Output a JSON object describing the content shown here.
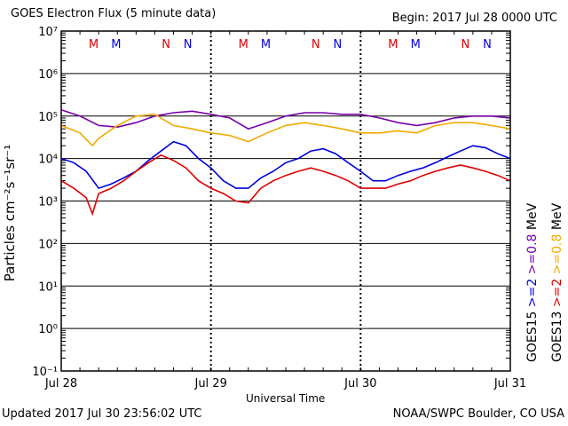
{
  "header": {
    "title": "GOES Electron Flux (5 minute data)",
    "begin": "Begin: 2017 Jul 28 0000 UTC"
  },
  "footer": {
    "updated": "Updated 2017 Jul 30 23:56:02 UTC",
    "source": "NOAA/SWPC Boulder, CO USA"
  },
  "chart_data": {
    "type": "line",
    "xlabel": "Universal Time",
    "ylabel": "Particles cm⁻²s⁻¹sr⁻¹",
    "y_scale": "log",
    "ylim_exponent": [
      -1,
      7
    ],
    "y_tick_labels": [
      "10⁻¹",
      "10⁰",
      "10¹",
      "10²",
      "10³",
      "10⁴",
      "10⁵",
      "10⁶",
      "10⁷"
    ],
    "x_tick_labels": [
      "Jul 28",
      "Jul 29",
      "Jul 30",
      "Jul 31"
    ],
    "x_range_hours": [
      0,
      72
    ],
    "threshold_line": {
      "y": 1000,
      "style": "dashed"
    },
    "mn_markers": [
      {
        "label": "M",
        "hour": 5.2,
        "color": "#dd0000"
      },
      {
        "label": "M",
        "hour": 8.8,
        "color": "#0000dd"
      },
      {
        "label": "N",
        "hour": 16.8,
        "color": "#dd0000"
      },
      {
        "label": "N",
        "hour": 20.3,
        "color": "#0000dd"
      },
      {
        "label": "M",
        "hour": 29.2,
        "color": "#dd0000"
      },
      {
        "label": "M",
        "hour": 32.8,
        "color": "#0000dd"
      },
      {
        "label": "N",
        "hour": 40.8,
        "color": "#dd0000"
      },
      {
        "label": "N",
        "hour": 44.3,
        "color": "#0000dd"
      },
      {
        "label": "M",
        "hour": 53.2,
        "color": "#dd0000"
      },
      {
        "label": "M",
        "hour": 56.8,
        "color": "#0000dd"
      },
      {
        "label": "N",
        "hour": 64.8,
        "color": "#dd0000"
      },
      {
        "label": "N",
        "hour": 68.3,
        "color": "#0000dd"
      }
    ],
    "legend": [
      {
        "text": "GOES15",
        "color": "#000000"
      },
      {
        "text": ">=2",
        "color": "#0000dd"
      },
      {
        "text": ">=0.8",
        "color": "#7700aa"
      },
      {
        "text": "MeV",
        "color": "#000000"
      },
      {
        "text": "GOES13",
        "color": "#000000"
      },
      {
        "text": ">=2",
        "color": "#dd0000"
      },
      {
        "text": ">=0.8",
        "color": "#eeaa00"
      },
      {
        "text": "MeV",
        "color": "#000000"
      }
    ],
    "series": [
      {
        "color": "#7700aa",
        "x": [
          0,
          3,
          6,
          9,
          12,
          15,
          18,
          21,
          24,
          27,
          30,
          33,
          36,
          39,
          42,
          45,
          48,
          51,
          54,
          57,
          60,
          63,
          66,
          69,
          72
        ],
        "y": [
          140000,
          100000,
          60000,
          55000,
          70000,
          100000,
          120000,
          130000,
          110000,
          90000,
          50000,
          70000,
          100000,
          120000,
          120000,
          110000,
          110000,
          90000,
          70000,
          60000,
          70000,
          90000,
          100000,
          100000,
          90000
        ]
      },
      {
        "color": "#eeaa00",
        "x": [
          0,
          3,
          5,
          6,
          9,
          12,
          15,
          18,
          21,
          24,
          27,
          30,
          33,
          36,
          39,
          42,
          45,
          48,
          51,
          54,
          57,
          60,
          63,
          66,
          69,
          72
        ],
        "y": [
          60000,
          40000,
          20000,
          30000,
          60000,
          100000,
          110000,
          60000,
          50000,
          40000,
          35000,
          25000,
          40000,
          60000,
          70000,
          60000,
          50000,
          40000,
          40000,
          45000,
          40000,
          60000,
          70000,
          70000,
          60000,
          50000
        ]
      },
      {
        "color": "#0000dd",
        "x": [
          0,
          2,
          4,
          6,
          8,
          10,
          12,
          14,
          16,
          18,
          20,
          22,
          24,
          26,
          28,
          30,
          32,
          34,
          36,
          38,
          40,
          42,
          44,
          46,
          48,
          50,
          52,
          54,
          56,
          58,
          60,
          62,
          64,
          66,
          68,
          70,
          72
        ],
        "y": [
          10000,
          8000,
          5000,
          2000,
          2500,
          3500,
          5000,
          9000,
          15000,
          25000,
          20000,
          10000,
          6000,
          3000,
          2000,
          2000,
          3500,
          5000,
          8000,
          10000,
          15000,
          17000,
          13000,
          8000,
          5000,
          3000,
          3000,
          4000,
          5000,
          6000,
          8000,
          11000,
          15000,
          20000,
          18000,
          13000,
          10000
        ]
      },
      {
        "color": "#dd0000",
        "x": [
          0,
          2,
          4,
          5,
          6,
          8,
          10,
          12,
          14,
          16,
          18,
          20,
          22,
          24,
          26,
          28,
          30,
          32,
          34,
          36,
          38,
          40,
          42,
          44,
          46,
          48,
          50,
          52,
          54,
          56,
          58,
          60,
          62,
          64,
          66,
          68,
          70,
          72
        ],
        "y": [
          3000,
          2000,
          1200,
          500,
          1500,
          2000,
          3000,
          5000,
          8000,
          12000,
          9000,
          6000,
          3000,
          2000,
          1500,
          1000,
          900,
          2000,
          3000,
          4000,
          5000,
          6000,
          5000,
          4000,
          3000,
          2000,
          2000,
          2000,
          2500,
          3000,
          4000,
          5000,
          6000,
          7000,
          6000,
          5000,
          4000,
          3000
        ]
      }
    ]
  }
}
